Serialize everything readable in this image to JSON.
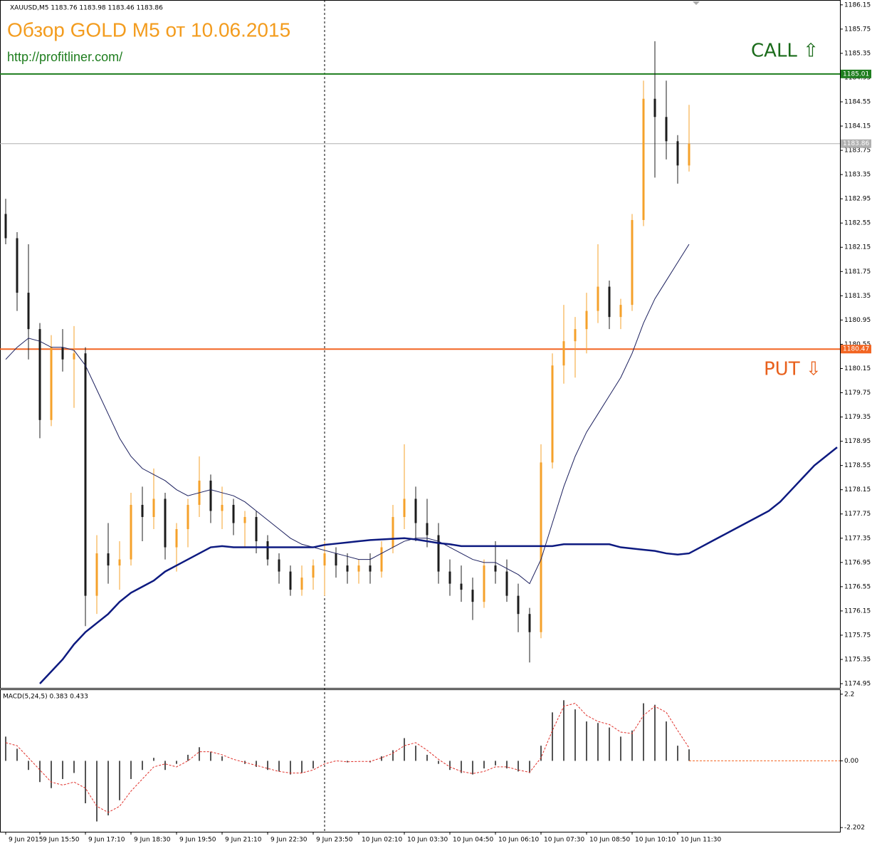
{
  "chart_data": [
    {
      "type": "candlestick",
      "symbol_info": "XAUUSD,M5  1183.76 1183.98 1183.46 1183.86",
      "title": "Обзор GOLD M5 от 10.06.2015",
      "subtitle": "http://profitliner.com/",
      "annotations": [
        "CALL ⇧",
        "PUT ⇩"
      ],
      "annotation_colors": [
        "#1a6b1a",
        "#e8601c"
      ],
      "categories": [
        "9 Jun 2015",
        null,
        null,
        "9 Jun 15:50",
        null,
        null,
        null,
        "9 Jun 17:10",
        null,
        null,
        null,
        "9 Jun 18:30",
        null,
        null,
        null,
        "9 Jun 19:50",
        null,
        null,
        null,
        "9 Jun 21:10",
        null,
        null,
        null,
        "9 Jun 22:30",
        null,
        null,
        null,
        "9 Jun 23:50",
        null,
        null,
        null,
        "10 Jun 02:10",
        null,
        null,
        null,
        "10 Jun 03:30",
        null,
        null,
        null,
        "10 Jun 04:50",
        null,
        null,
        null,
        "10 Jun 06:10",
        null,
        null,
        null,
        "10 Jun 07:30",
        null,
        null,
        null,
        "10 Jun 08:50",
        null,
        null,
        null,
        "10 Jun 10:10",
        null,
        null,
        null,
        "10 Jun 11:30",
        null,
        null,
        null,
        null,
        null,
        null,
        null,
        null,
        null,
        null,
        null,
        null,
        null,
        null
      ],
      "open": [
        1182.7,
        1182.3,
        1181.4,
        1180.8,
        1179.3,
        1180.5,
        1180.3,
        1180.4,
        1176.4,
        1177.1,
        1176.9,
        1177.0,
        1177.9,
        1177.7,
        1178.0,
        1177.2,
        1177.5,
        1177.9,
        1178.3,
        1177.8,
        1177.9,
        1177.6,
        1177.7,
        1177.3,
        1177.0,
        1176.8,
        1176.5,
        1176.7,
        1176.9,
        1177.1,
        1176.9,
        1176.8,
        1176.9,
        1176.8,
        1177.2,
        1177.7,
        1178.0,
        1177.6,
        1177.4,
        1176.8,
        1176.6,
        1176.5,
        1176.3,
        1176.9,
        1176.8,
        1176.4,
        1176.1,
        1175.8,
        1178.6,
        1180.2,
        1180.6,
        1180.8,
        1181.1,
        1181.5,
        1181.0,
        1181.2,
        1182.6,
        1184.6,
        1184.3,
        1183.9,
        1183.5,
        null,
        null,
        null,
        null,
        null,
        null,
        null,
        null,
        null,
        null,
        null,
        null,
        null
      ],
      "high": [
        1182.95,
        1182.4,
        1182.2,
        1180.9,
        1180.7,
        1180.8,
        1180.85,
        1180.5,
        1177.4,
        1177.6,
        1177.3,
        1178.1,
        1178.2,
        1178.5,
        1178.1,
        1177.6,
        1178.0,
        1178.7,
        1178.4,
        1178.2,
        1178.0,
        1177.8,
        1177.8,
        1177.4,
        1177.1,
        1176.9,
        1176.9,
        1177.0,
        1177.3,
        1177.2,
        1177.1,
        1177.0,
        1177.1,
        1177.3,
        1177.9,
        1178.9,
        1178.2,
        1178.0,
        1177.6,
        1177.0,
        1176.9,
        1176.7,
        1177.0,
        1177.3,
        1177.0,
        1176.6,
        1176.2,
        1178.9,
        1180.4,
        1181.2,
        1181.0,
        1181.4,
        1182.2,
        1181.6,
        1181.3,
        1182.7,
        1184.9,
        1185.55,
        1184.9,
        1184.0,
        1184.5,
        null,
        null,
        null,
        null,
        null,
        null,
        null,
        null,
        null,
        null,
        null,
        null,
        null
      ],
      "low": [
        1182.2,
        1181.1,
        1180.3,
        1179.0,
        1179.2,
        1180.1,
        1179.5,
        1175.9,
        1176.1,
        1176.6,
        1176.5,
        1176.9,
        1177.3,
        1177.5,
        1177.0,
        1176.8,
        1177.2,
        1177.7,
        1177.6,
        1177.5,
        1177.4,
        1177.2,
        1177.1,
        1176.9,
        1176.6,
        1176.4,
        1176.4,
        1176.5,
        1176.4,
        1176.7,
        1176.6,
        1176.6,
        1176.6,
        1176.7,
        1177.1,
        1177.5,
        1177.3,
        1177.2,
        1176.6,
        1176.4,
        1176.3,
        1176.0,
        1176.2,
        1176.6,
        1176.3,
        1175.8,
        1175.3,
        1175.7,
        1178.5,
        1179.9,
        1180.0,
        1180.4,
        1180.9,
        1180.8,
        1180.8,
        1181.1,
        1182.5,
        1183.3,
        1183.6,
        1183.2,
        1183.4,
        null,
        null,
        null,
        null,
        null,
        null,
        null,
        null,
        null,
        null,
        null,
        null,
        null
      ],
      "close": [
        1182.3,
        1181.4,
        1180.8,
        1179.3,
        1180.5,
        1180.3,
        1180.4,
        1176.4,
        1177.1,
        1176.9,
        1177.0,
        1177.9,
        1177.7,
        1178.0,
        1177.2,
        1177.5,
        1177.9,
        1178.3,
        1177.8,
        1177.9,
        1177.6,
        1177.7,
        1177.3,
        1177.0,
        1176.8,
        1176.5,
        1176.7,
        1176.9,
        1177.1,
        1176.9,
        1176.8,
        1176.9,
        1176.8,
        1177.2,
        1177.7,
        1178.0,
        1177.6,
        1177.4,
        1176.8,
        1176.6,
        1176.5,
        1176.3,
        1176.9,
        1176.8,
        1176.4,
        1176.1,
        1175.8,
        1178.6,
        1180.2,
        1180.6,
        1180.8,
        1181.1,
        1181.5,
        1181.0,
        1181.2,
        1182.6,
        1184.6,
        1184.3,
        1183.9,
        1183.5,
        1183.86,
        null,
        null,
        null,
        null,
        null,
        null,
        null,
        null,
        null,
        null,
        null,
        null,
        null
      ],
      "up_color": "#f5a12a",
      "down_color": "#1c1c1c",
      "series": [
        {
          "color": "#1b1f5e",
          "width": 1,
          "values": [
            1180.3,
            1180.5,
            1180.65,
            1180.6,
            1180.5,
            1180.5,
            1180.45,
            1180.2,
            1179.8,
            1179.4,
            1179.0,
            1178.7,
            1178.5,
            1178.4,
            1178.3,
            1178.15,
            1178.05,
            1178.1,
            1178.15,
            1178.1,
            1178.05,
            1177.95,
            1177.8,
            1177.65,
            1177.5,
            1177.35,
            1177.25,
            1177.2,
            1177.15,
            1177.1,
            1177.05,
            1177.0,
            1177.0,
            1177.1,
            1177.2,
            1177.3,
            1177.35,
            1177.35,
            1177.3,
            1177.2,
            1177.1,
            1177.0,
            1176.95,
            1176.95,
            1176.85,
            1176.75,
            1176.6,
            1177.0,
            1177.6,
            1178.2,
            1178.7,
            1179.1,
            1179.4,
            1179.7,
            1180.0,
            1180.4,
            1180.9,
            1181.3,
            1181.6,
            1181.9,
            1182.2,
            null,
            null,
            null,
            null,
            null,
            null,
            null,
            null,
            null,
            null,
            null,
            null,
            null
          ]
        },
        {
          "color": "#0d1a80",
          "width": 2.5,
          "values": [
            null,
            null,
            null,
            1174.95,
            1175.15,
            1175.35,
            1175.6,
            1175.8,
            1175.95,
            1176.1,
            1176.3,
            1176.45,
            1176.55,
            1176.65,
            1176.8,
            1176.9,
            1177.0,
            1177.1,
            1177.2,
            1177.22,
            1177.2,
            1177.2,
            1177.2,
            1177.2,
            1177.2,
            1177.2,
            1177.2,
            1177.2,
            1177.24,
            1177.26,
            1177.28,
            1177.3,
            1177.32,
            1177.33,
            1177.34,
            1177.35,
            1177.33,
            1177.3,
            1177.27,
            1177.25,
            1177.22,
            1177.22,
            1177.22,
            1177.22,
            1177.22,
            1177.22,
            1177.22,
            1177.22,
            1177.22,
            1177.25,
            1177.25,
            1177.25,
            1177.25,
            1177.25,
            1177.2,
            1177.18,
            1177.16,
            1177.14,
            1177.1,
            1177.08,
            1177.1,
            1177.2,
            1177.3,
            1177.4,
            1177.5,
            1177.6,
            1177.7,
            1177.8,
            1177.95,
            1178.15,
            1178.35,
            1178.55,
            1178.7,
            1178.85
          ]
        }
      ],
      "levels": [
        {
          "value": 1185.01,
          "color": "#1e7d1e"
        },
        {
          "value": 1180.47,
          "color": "#f26522"
        },
        {
          "value": 1183.86,
          "color": "#b0b0b0"
        }
      ],
      "ylim": [
        1174.88,
        1186.23
      ],
      "yticks": [
        1186.15,
        1185.75,
        1185.35,
        1184.95,
        1184.55,
        1184.15,
        1183.75,
        1183.35,
        1182.95,
        1182.55,
        1182.15,
        1181.75,
        1181.35,
        1180.95,
        1180.55,
        1180.15,
        1179.75,
        1179.35,
        1178.95,
        1178.55,
        1178.15,
        1177.75,
        1177.35,
        1176.95,
        1176.55,
        1176.15,
        1175.75,
        1175.35,
        1174.95
      ]
    },
    {
      "type": "macd",
      "label": "MACD(5,24,5) 0.383 0.433",
      "values": [
        0.8,
        0.4,
        -0.3,
        -0.7,
        -0.9,
        -0.6,
        -0.4,
        -1.4,
        -2.0,
        -1.8,
        -1.3,
        -0.6,
        -0.3,
        0.1,
        -0.3,
        -0.1,
        0.2,
        0.45,
        0.3,
        0.15,
        0.0,
        -0.1,
        -0.2,
        -0.3,
        -0.35,
        -0.45,
        -0.4,
        -0.25,
        -0.05,
        0.0,
        -0.05,
        0.0,
        -0.05,
        0.15,
        0.35,
        0.75,
        0.5,
        0.2,
        -0.1,
        -0.3,
        -0.4,
        -0.45,
        -0.25,
        -0.15,
        -0.25,
        -0.35,
        -0.4,
        0.5,
        1.6,
        2.0,
        1.7,
        1.3,
        1.25,
        1.1,
        0.8,
        1.0,
        1.9,
        1.85,
        1.3,
        0.5,
        0.38
      ],
      "color": "#1c1c1c",
      "signal": [
        0.6,
        0.5,
        0.1,
        -0.3,
        -0.7,
        -0.8,
        -0.7,
        -0.9,
        -1.5,
        -1.7,
        -1.5,
        -1.0,
        -0.6,
        -0.2,
        -0.1,
        -0.2,
        0.0,
        0.3,
        0.3,
        0.2,
        0.05,
        -0.05,
        -0.15,
        -0.25,
        -0.35,
        -0.4,
        -0.4,
        -0.3,
        -0.1,
        0.0,
        -0.03,
        -0.02,
        -0.02,
        0.1,
        0.25,
        0.5,
        0.6,
        0.35,
        0.05,
        -0.2,
        -0.35,
        -0.42,
        -0.35,
        -0.2,
        -0.2,
        -0.3,
        -0.38,
        0.1,
        1.0,
        1.8,
        1.9,
        1.5,
        1.3,
        1.2,
        0.95,
        0.9,
        1.5,
        1.8,
        1.6,
        1.0,
        0.43
      ],
      "signal_color": "#e0302a",
      "ylim": [
        -2.34,
        2.36
      ],
      "yticks": [
        2.2,
        {
          "value": 0,
          "label": "0.00"
        },
        -2.202
      ]
    }
  ]
}
